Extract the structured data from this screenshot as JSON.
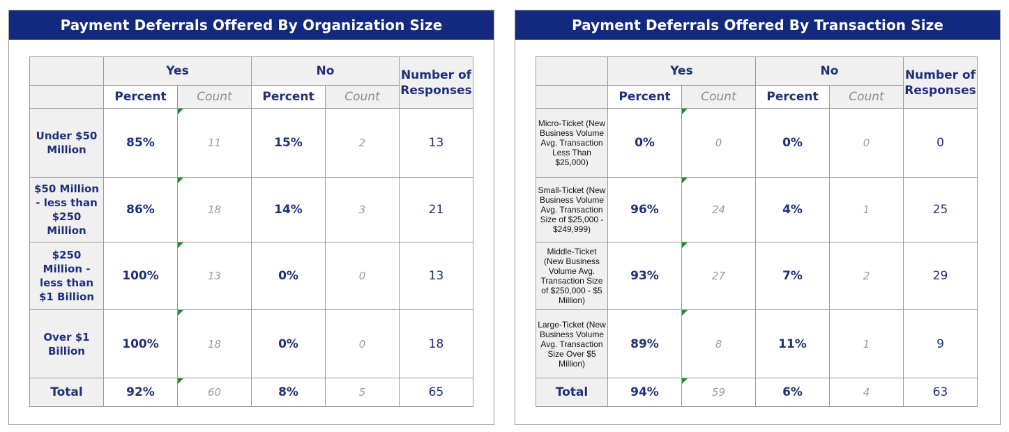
{
  "left": {
    "title": "Payment Deferrals Offered By Organization Size",
    "headers": {
      "yes": "Yes",
      "no": "No",
      "percent": "Percent",
      "count": "Count",
      "responses": "Number of Responses"
    },
    "rows": [
      {
        "label": "Under $50 Million",
        "yes_pct": "85%",
        "yes_cnt": "11",
        "no_pct": "15%",
        "no_cnt": "2",
        "responses": "13"
      },
      {
        "label": "$50 Million - less than $250 Million",
        "yes_pct": "86%",
        "yes_cnt": "18",
        "no_pct": "14%",
        "no_cnt": "3",
        "responses": "21"
      },
      {
        "label": "$250 Million - less than $1 Billion",
        "yes_pct": "100%",
        "yes_cnt": "13",
        "no_pct": "0%",
        "no_cnt": "0",
        "responses": "13"
      },
      {
        "label": "Over $1 Billion",
        "yes_pct": "100%",
        "yes_cnt": "18",
        "no_pct": "0%",
        "no_cnt": "0",
        "responses": "18"
      }
    ],
    "total": {
      "label": "Total",
      "yes_pct": "92%",
      "yes_cnt": "60",
      "no_pct": "8%",
      "no_cnt": "5",
      "responses": "65"
    }
  },
  "right": {
    "title": "Payment Deferrals Offered By Transaction Size",
    "headers": {
      "yes": "Yes",
      "no": "No",
      "percent": "Percent",
      "count": "Count",
      "responses": "Number of Responses"
    },
    "rows": [
      {
        "label": "Micro-Ticket (New Business Volume Avg. Transaction Less Than $25,000)",
        "yes_pct": "0%",
        "yes_cnt": "0",
        "no_pct": "0%",
        "no_cnt": "0",
        "responses": "0"
      },
      {
        "label": "Small-Ticket (New Business Volume Avg. Transaction Size of $25,000 - $249,999)",
        "yes_pct": "96%",
        "yes_cnt": "24",
        "no_pct": "4%",
        "no_cnt": "1",
        "responses": "25"
      },
      {
        "label": "Middle-Ticket (New Business Volume Avg. Transaction Size of $250,000 - $5 Million)",
        "yes_pct": "93%",
        "yes_cnt": "27",
        "no_pct": "7%",
        "no_cnt": "2",
        "responses": "29"
      },
      {
        "label": "Large-Ticket (New Business Volume Avg. Transaction Size Over $5 Million)",
        "yes_pct": "89%",
        "yes_cnt": "8",
        "no_pct": "11%",
        "no_cnt": "1",
        "responses": "9"
      }
    ],
    "total": {
      "label": "Total",
      "yes_pct": "94%",
      "yes_cnt": "59",
      "no_pct": "6%",
      "no_cnt": "4",
      "responses": "63"
    }
  }
}
